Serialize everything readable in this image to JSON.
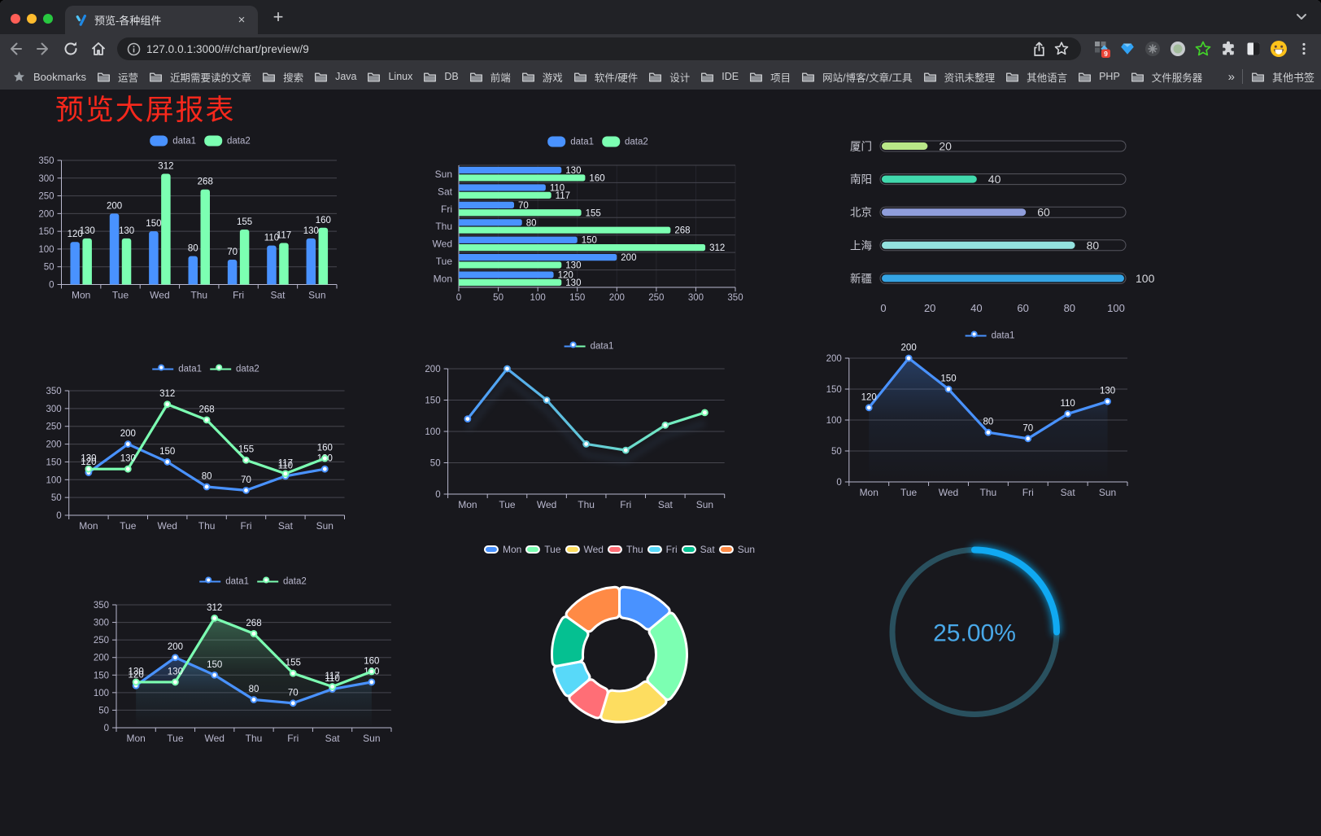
{
  "browser": {
    "window_controls": [
      "close",
      "minimize",
      "zoom"
    ],
    "tab": {
      "title": "预览-各种组件",
      "close": "×",
      "new_tab": "+",
      "favicon": "v-logo-icon"
    },
    "tab_strip_icons": [
      "tab-search-chevron"
    ],
    "url": "127.0.0.1:3000/#/chart/preview/9",
    "toolbar_icons": [
      "back-arrow",
      "forward-arrow",
      "reload",
      "home"
    ],
    "omnibox_icons": [
      "site-info",
      "share",
      "bookmark-star"
    ],
    "extension_icons": [
      "extension-blocks-badge",
      "gem",
      "dark-circle",
      "pale-circle",
      "green-star",
      "puzzle",
      "contrast-square",
      "avatar-emoji",
      "kebab-menu"
    ],
    "extension_badge": "9",
    "bookmarks_bar": {
      "root_label": "Bookmarks",
      "folders": [
        "运营",
        "近期需要读的文章",
        "搜索",
        "Java",
        "Linux",
        "DB",
        "前端",
        "游戏",
        "软件/硬件",
        "设计",
        "IDE",
        "项目",
        "网站/博客/文章/工具",
        "资讯未整理",
        "其他语言",
        "PHP",
        "文件服务器"
      ],
      "overflow": "»",
      "other_bookmarks": "其他书签"
    }
  },
  "page": {
    "title": "预览大屏报表",
    "title_color": "#f8281c",
    "background": "#18181d"
  },
  "chart_data": [
    {
      "id": "grouped-bar",
      "type": "bar",
      "categories": [
        "Mon",
        "Tue",
        "Wed",
        "Thu",
        "Fri",
        "Sat",
        "Sun"
      ],
      "series": [
        {
          "name": "data1",
          "color": "#4992ff",
          "values": [
            120,
            200,
            150,
            80,
            70,
            110,
            130
          ]
        },
        {
          "name": "data2",
          "color": "#7cffb2",
          "values": [
            130,
            130,
            312,
            268,
            155,
            117,
            160
          ]
        }
      ],
      "ylim": [
        0,
        350
      ],
      "ytick": 50,
      "legend": "rect",
      "labels": true,
      "grid": true
    },
    {
      "id": "horizontal-bar",
      "type": "hbar",
      "categories": [
        "Mon",
        "Tue",
        "Wed",
        "Thu",
        "Fri",
        "Sat",
        "Sun"
      ],
      "series": [
        {
          "name": "data1",
          "color": "#4992ff",
          "values": [
            120,
            200,
            150,
            80,
            70,
            110,
            130
          ]
        },
        {
          "name": "data2",
          "color": "#7cffb2",
          "values": [
            130,
            130,
            312,
            268,
            155,
            117,
            160
          ]
        }
      ],
      "xlim": [
        0,
        350
      ],
      "xtick": 50,
      "legend": "rect",
      "labels": true,
      "grid": true
    },
    {
      "id": "progress-pills",
      "type": "pill",
      "categories": [
        "厦门",
        "南阳",
        "北京",
        "上海",
        "新疆"
      ],
      "values": [
        20,
        40,
        60,
        80,
        100
      ],
      "colors": [
        "#b9e788",
        "#41d9ad",
        "#8f9ddb",
        "#93e2df",
        "#35a4e4"
      ],
      "xticks": [
        0,
        20,
        40,
        60,
        80,
        100
      ],
      "xlim": [
        0,
        100
      ]
    },
    {
      "id": "two-line",
      "type": "line",
      "categories": [
        "Mon",
        "Tue",
        "Wed",
        "Thu",
        "Fri",
        "Sat",
        "Sun"
      ],
      "series": [
        {
          "name": "data1",
          "color": "#4992ff",
          "values": [
            120,
            200,
            150,
            80,
            70,
            110,
            130
          ]
        },
        {
          "name": "data2",
          "color": "#7cffb2",
          "values": [
            130,
            130,
            312,
            268,
            155,
            117,
            160
          ]
        }
      ],
      "ylim": [
        0,
        350
      ],
      "ytick": 50,
      "legend": "line",
      "labels": true,
      "markers": true
    },
    {
      "id": "gradient-line",
      "type": "line",
      "categories": [
        "Mon",
        "Tue",
        "Wed",
        "Thu",
        "Fri",
        "Sat",
        "Sun"
      ],
      "series": [
        {
          "name": "data1",
          "gradient": [
            "#4992ff",
            "#7cffb2"
          ],
          "color": "#4992ff",
          "values": [
            120,
            200,
            150,
            80,
            70,
            110,
            130
          ],
          "shadow": true
        }
      ],
      "ylim": [
        0,
        200
      ],
      "ytick": 50,
      "legend": "line",
      "labels": false,
      "markers": true
    },
    {
      "id": "single-area-line",
      "type": "line",
      "categories": [
        "Mon",
        "Tue",
        "Wed",
        "Thu",
        "Fri",
        "Sat",
        "Sun"
      ],
      "series": [
        {
          "name": "data1",
          "color": "#4992ff",
          "area": true,
          "values": [
            120,
            200,
            150,
            80,
            70,
            110,
            130
          ]
        }
      ],
      "ylim": [
        0,
        200
      ],
      "ytick": 50,
      "legend": "line",
      "labels": true,
      "markers": true
    },
    {
      "id": "two-area-line",
      "type": "line",
      "categories": [
        "Mon",
        "Tue",
        "Wed",
        "Thu",
        "Fri",
        "Sat",
        "Sun"
      ],
      "series": [
        {
          "name": "data1",
          "color": "#4992ff",
          "area": true,
          "values": [
            120,
            200,
            150,
            80,
            70,
            110,
            130
          ]
        },
        {
          "name": "data2",
          "color": "#7cffb2",
          "area": true,
          "values": [
            130,
            130,
            312,
            268,
            155,
            117,
            160
          ]
        }
      ],
      "ylim": [
        0,
        350
      ],
      "ytick": 50,
      "legend": "line",
      "labels": true,
      "markers": true
    },
    {
      "id": "donut-pie",
      "type": "donut",
      "categories": [
        "Mon",
        "Tue",
        "Wed",
        "Thu",
        "Fri",
        "Sat",
        "Sun"
      ],
      "values": [
        120,
        200,
        150,
        80,
        70,
        110,
        130
      ],
      "colors": [
        "#4992ff",
        "#7cffb2",
        "#fddd60",
        "#ff6e76",
        "#58d9f9",
        "#05c091",
        "#ff8a45"
      ],
      "legend": "rect-bordered"
    },
    {
      "id": "progress-gauge",
      "type": "gauge",
      "value": 25,
      "label": "25.00%",
      "progress_color": "#10a9f2",
      "track_color": "#29505e",
      "text_color": "#49a8e8"
    }
  ]
}
